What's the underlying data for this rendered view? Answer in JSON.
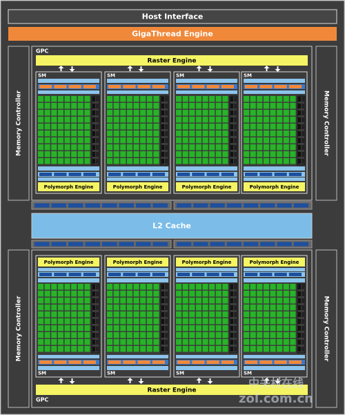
{
  "host_interface": "Host Interface",
  "gigathread_engine": "GigaThread Engine",
  "memory_controllers": [
    "Memory Controller",
    "Memory Controller",
    "Memory Controller",
    "Memory Controller"
  ],
  "gpcs": [
    {
      "label": "GPC",
      "raster_engine": "Raster Engine",
      "sms": [
        {
          "label": "SM",
          "polymorph_engine": "Polymorph Engine"
        },
        {
          "label": "SM",
          "polymorph_engine": "Polymorph Engine"
        },
        {
          "label": "SM",
          "polymorph_engine": "Polymorph Engine"
        },
        {
          "label": "SM",
          "polymorph_engine": "Polymorph Engine"
        }
      ]
    },
    {
      "label": "GPC",
      "raster_engine": "Raster Engine",
      "sms": [
        {
          "label": "SM",
          "polymorph_engine": "Polymorph Engine"
        },
        {
          "label": "SM",
          "polymorph_engine": "Polymorph Engine"
        },
        {
          "label": "SM",
          "polymorph_engine": "Polymorph Engine"
        },
        {
          "label": "SM",
          "polymorph_engine": "Polymorph Engine"
        }
      ]
    }
  ],
  "l2_cache": "L2 Cache",
  "watermark": {
    "cn": "中关村在线",
    "url": "zol.com.cn"
  }
}
